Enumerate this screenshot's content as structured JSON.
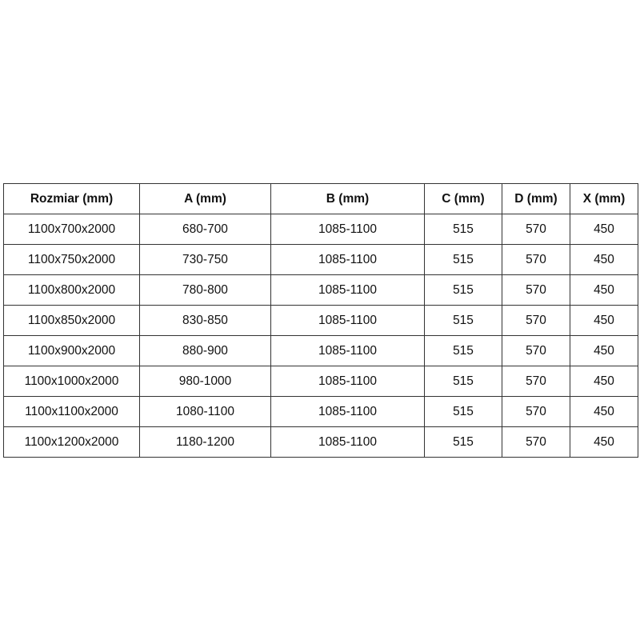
{
  "table": {
    "headers": [
      "Rozmiar (mm)",
      "A (mm)",
      "B (mm)",
      "C (mm)",
      "D (mm)",
      "X (mm)"
    ],
    "rows": [
      [
        "1100x700x2000",
        "680-700",
        "1085-1100",
        "515",
        "570",
        "450"
      ],
      [
        "1100x750x2000",
        "730-750",
        "1085-1100",
        "515",
        "570",
        "450"
      ],
      [
        "1100x800x2000",
        "780-800",
        "1085-1100",
        "515",
        "570",
        "450"
      ],
      [
        "1100x850x2000",
        "830-850",
        "1085-1100",
        "515",
        "570",
        "450"
      ],
      [
        "1100x900x2000",
        "880-900",
        "1085-1100",
        "515",
        "570",
        "450"
      ],
      [
        "1100x1000x2000",
        "980-1000",
        "1085-1100",
        "515",
        "570",
        "450"
      ],
      [
        "1100x1100x2000",
        "1080-1100",
        "1085-1100",
        "515",
        "570",
        "450"
      ],
      [
        "1100x1200x2000",
        "1180-1200",
        "1085-1100",
        "515",
        "570",
        "450"
      ]
    ]
  }
}
